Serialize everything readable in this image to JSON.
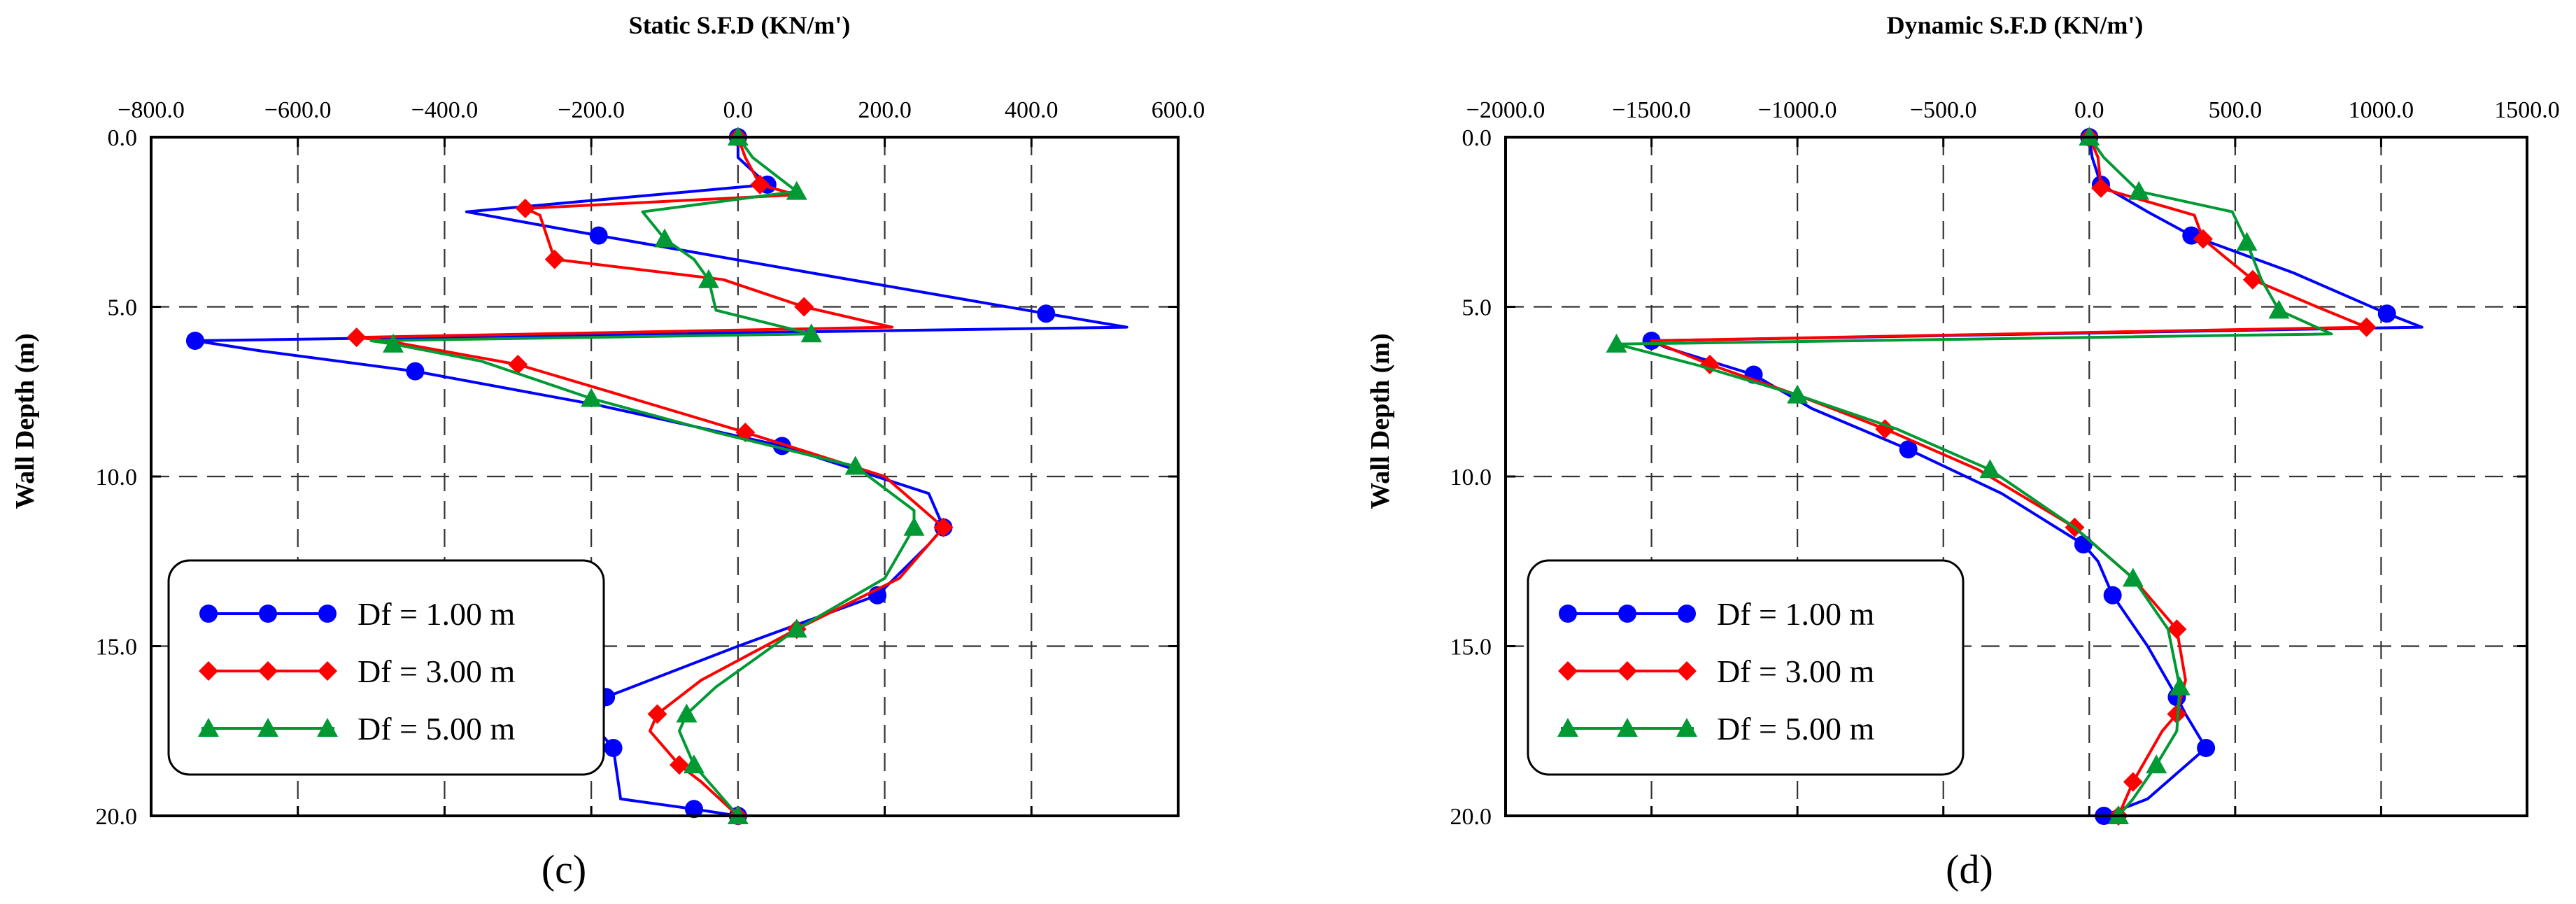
{
  "chart_data": [
    {
      "type": "line",
      "title": "Static S.F.D (KN/m')",
      "xlabel": "Static S.F.D (KN/m')",
      "ylabel": "Wall Depth (m)",
      "panel_label": "(c)",
      "xlim": [
        -800,
        600
      ],
      "xticks": [
        -800,
        -600,
        -400,
        -200,
        0,
        200,
        400,
        600
      ],
      "xtick_labels": [
        "−800.0",
        "−600.0",
        "−400.0",
        "−200.0",
        "0.0",
        "200.0",
        "400.0",
        "600.0"
      ],
      "ylim": [
        0,
        20
      ],
      "yticks": [
        0,
        5,
        10,
        15,
        20
      ],
      "ytick_labels": [
        "0.0",
        "5.0",
        "10.0",
        "15.0",
        "20.0"
      ],
      "grid": true,
      "legend_position": "bottom-left",
      "series": [
        {
          "name": "Df = 1.00 m",
          "color": "#0000ff",
          "marker": "circle",
          "x": [
            0,
            0,
            40,
            -370,
            -190,
            100,
            420,
            530,
            -740,
            -650,
            -440,
            -190,
            60,
            260,
            280,
            260,
            190,
            0,
            -180,
            -190,
            -170,
            -160,
            -60,
            0
          ],
          "y": [
            0,
            0.6,
            1.4,
            2.2,
            2.9,
            4.0,
            5.2,
            5.6,
            6.0,
            6.3,
            6.9,
            7.9,
            9.1,
            10.5,
            11.5,
            12.0,
            13.5,
            15.0,
            16.5,
            17.5,
            18.0,
            19.5,
            19.8,
            20.0
          ]
        },
        {
          "name": "Df = 3.00 m",
          "color": "#ff0000",
          "marker": "diamond",
          "x": [
            0,
            10,
            30,
            80,
            -290,
            -270,
            -250,
            -20,
            90,
            210,
            -520,
            -480,
            -300,
            -160,
            10,
            200,
            280,
            220,
            80,
            -50,
            -110,
            -120,
            -80,
            -50,
            0
          ],
          "y": [
            0,
            0.6,
            1.4,
            1.7,
            2.1,
            2.3,
            3.6,
            4.2,
            5.0,
            5.6,
            5.9,
            6.0,
            6.7,
            7.6,
            8.7,
            10.0,
            11.5,
            13.0,
            14.5,
            16.0,
            17.0,
            17.5,
            18.5,
            19.0,
            20.0
          ]
        },
        {
          "name": "Df = 5.00 m",
          "color": "#009933",
          "marker": "triangle",
          "x": [
            0,
            20,
            80,
            -130,
            -100,
            -60,
            -40,
            -30,
            100,
            -500,
            -470,
            -350,
            -200,
            -30,
            160,
            240,
            240,
            200,
            80,
            -30,
            -70,
            -80,
            -60,
            0
          ],
          "y": [
            0,
            0.6,
            1.6,
            2.2,
            3.0,
            3.6,
            4.2,
            5.1,
            5.8,
            6.0,
            6.1,
            6.6,
            7.7,
            8.7,
            9.7,
            11.0,
            11.5,
            13.0,
            14.5,
            16.2,
            17.0,
            17.5,
            18.5,
            20.0
          ]
        }
      ]
    },
    {
      "type": "line",
      "title": "Dynamic S.F.D (KN/m')",
      "xlabel": "Dynamic S.F.D (KN/m')",
      "ylabel": "Wall Depth (m)",
      "panel_label": "(d)",
      "xlim": [
        -2000,
        1500
      ],
      "xticks": [
        -2000,
        -1500,
        -1000,
        -500,
        0,
        500,
        1000,
        1500
      ],
      "xtick_labels": [
        "−2000.0",
        "−1500.0",
        "−1000.0",
        "−500.0",
        "0.0",
        "500.0",
        "1000.0",
        "1500.0"
      ],
      "ylim": [
        0,
        20
      ],
      "yticks": [
        0,
        5,
        10,
        15,
        20
      ],
      "ytick_labels": [
        "0.0",
        "5.0",
        "10.0",
        "15.0",
        "20.0"
      ],
      "grid": true,
      "legend_position": "bottom-left",
      "series": [
        {
          "name": "Df = 1.00 m",
          "color": "#0000ff",
          "marker": "circle",
          "x": [
            0,
            10,
            40,
            200,
            350,
            700,
            1020,
            1140,
            -1500,
            -1450,
            -1150,
            -950,
            -620,
            -300,
            -20,
            30,
            80,
            200,
            300,
            330,
            400,
            200,
            50
          ],
          "y": [
            0,
            0.6,
            1.4,
            2.2,
            2.9,
            4.0,
            5.2,
            5.6,
            6.0,
            6.2,
            7.0,
            8.0,
            9.2,
            10.5,
            12.0,
            12.5,
            13.5,
            15.0,
            16.5,
            17.0,
            18.0,
            19.5,
            20.0
          ]
        },
        {
          "name": "Df = 3.00 m",
          "color": "#ff0000",
          "marker": "diamond",
          "x": [
            0,
            30,
            40,
            360,
            390,
            460,
            560,
            780,
            950,
            -1500,
            -1300,
            -1000,
            -700,
            -380,
            -50,
            150,
            300,
            330,
            300,
            250,
            150,
            100
          ],
          "y": [
            0,
            0.6,
            1.5,
            2.3,
            3.0,
            3.5,
            4.2,
            5.0,
            5.6,
            6.0,
            6.7,
            7.6,
            8.6,
            9.8,
            11.5,
            13.0,
            14.5,
            16.0,
            17.0,
            17.5,
            19.0,
            20.0
          ]
        },
        {
          "name": "Df = 5.00 m",
          "color": "#009933",
          "marker": "triangle",
          "x": [
            0,
            50,
            170,
            490,
            540,
            590,
            650,
            830,
            -1620,
            -1350,
            -1000,
            -660,
            -340,
            -50,
            150,
            270,
            310,
            300,
            230,
            150,
            100
          ],
          "y": [
            0,
            0.6,
            1.6,
            2.2,
            3.1,
            4.2,
            5.1,
            5.8,
            6.1,
            6.7,
            7.6,
            8.6,
            9.8,
            11.5,
            13.0,
            14.5,
            16.2,
            17.5,
            18.5,
            19.5,
            20.0
          ]
        }
      ]
    }
  ]
}
